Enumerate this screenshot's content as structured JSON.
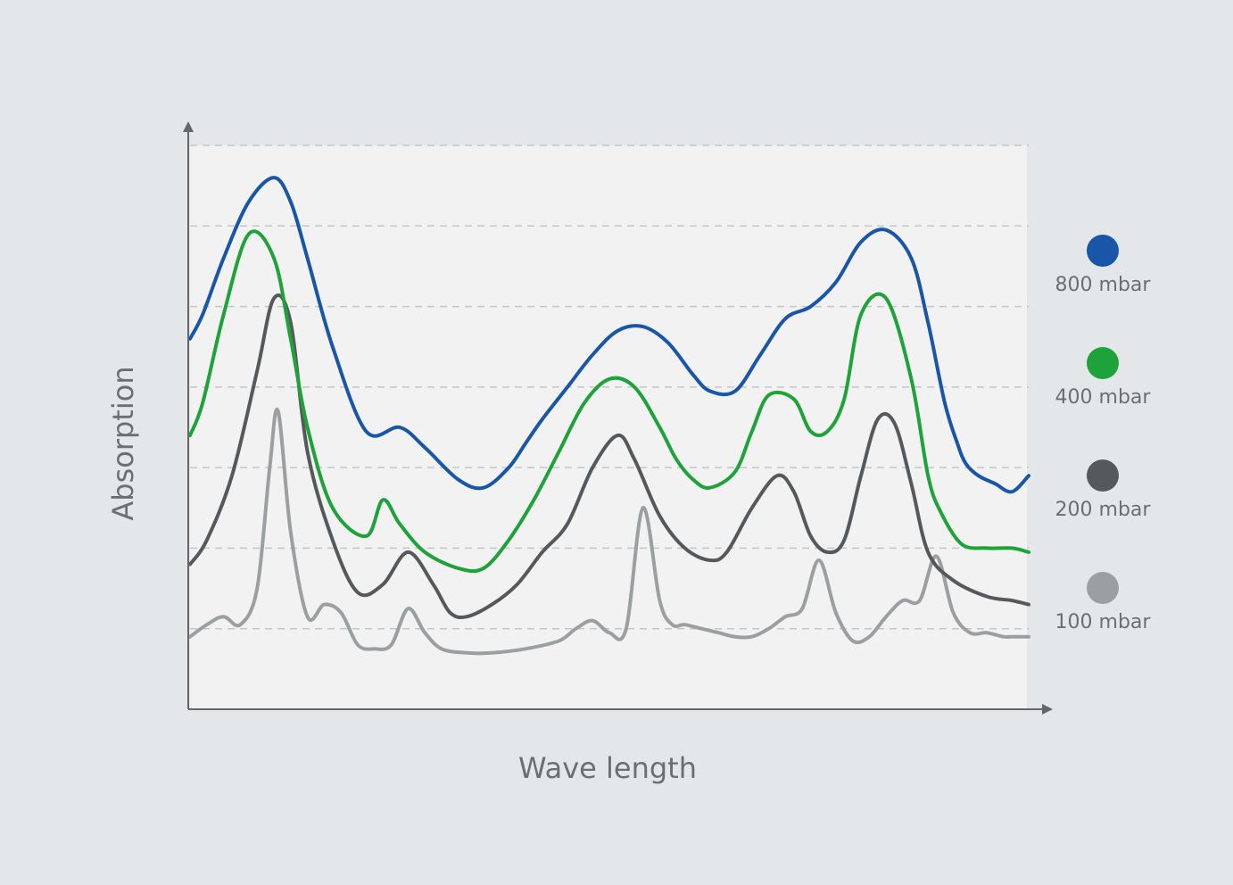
{
  "chart_data": {
    "type": "line",
    "title": "",
    "xlabel": "Wave length",
    "ylabel": "Absorption",
    "xlim": [
      0,
      100
    ],
    "ylim": [
      0,
      7
    ],
    "grid": true,
    "legend_position": "right",
    "series": [
      {
        "name": "800 mbar",
        "color": "#1a56a8",
        "x": [
          0,
          1.5,
          4,
          7,
          10,
          12,
          14,
          17,
          21,
          25,
          28,
          32,
          35,
          38,
          40,
          42,
          45,
          48,
          51,
          54,
          57,
          60,
          62,
          65,
          68,
          71,
          74,
          77,
          80,
          83,
          86,
          88,
          90,
          91.5,
          92.5,
          94,
          96,
          98,
          100
        ],
        "y": [
          4.6,
          4.9,
          5.6,
          6.3,
          6.6,
          6.3,
          5.6,
          4.5,
          3.45,
          3.5,
          3.25,
          2.85,
          2.75,
          3.0,
          3.3,
          3.6,
          4.0,
          4.4,
          4.7,
          4.75,
          4.55,
          4.15,
          3.95,
          3.95,
          4.4,
          4.85,
          5.0,
          5.3,
          5.8,
          5.95,
          5.6,
          4.8,
          3.8,
          3.3,
          3.05,
          2.9,
          2.8,
          2.7,
          2.9
        ]
      },
      {
        "name": "400 mbar",
        "color": "#1ea23a",
        "x": [
          0,
          1.5,
          4,
          7,
          10,
          12,
          14,
          17,
          21,
          23,
          25,
          28,
          32,
          35,
          38,
          41,
          44,
          47,
          50,
          53,
          56,
          58,
          60,
          62,
          65,
          67,
          69,
          72,
          74,
          76,
          78,
          80,
          83,
          86,
          88,
          89.5,
          92,
          95,
          98,
          100
        ],
        "y": [
          3.4,
          3.8,
          4.9,
          5.9,
          5.6,
          4.6,
          3.5,
          2.5,
          2.15,
          2.6,
          2.3,
          1.95,
          1.75,
          1.75,
          2.1,
          2.6,
          3.2,
          3.8,
          4.1,
          4.0,
          3.5,
          3.1,
          2.85,
          2.75,
          2.95,
          3.45,
          3.9,
          3.85,
          3.45,
          3.45,
          3.85,
          4.9,
          5.1,
          4.1,
          2.9,
          2.45,
          2.05,
          2.0,
          2.0,
          1.95
        ]
      },
      {
        "name": "200 mbar",
        "color": "#55595c",
        "x": [
          0,
          2,
          5,
          8,
          10,
          12,
          14,
          17,
          20,
          23,
          26,
          29,
          31,
          33,
          36,
          39,
          42,
          45,
          48,
          51,
          53,
          56,
          59,
          62,
          64,
          67,
          70,
          72,
          74,
          76,
          78,
          80,
          82,
          84,
          86,
          88,
          91,
          95,
          98,
          100
        ],
        "y": [
          1.8,
          2.1,
          2.9,
          4.2,
          5.1,
          4.8,
          3.2,
          2.1,
          1.45,
          1.55,
          1.95,
          1.55,
          1.2,
          1.15,
          1.3,
          1.55,
          1.95,
          2.3,
          3.0,
          3.4,
          3.1,
          2.4,
          2.0,
          1.85,
          1.95,
          2.5,
          2.9,
          2.7,
          2.15,
          1.95,
          2.1,
          2.9,
          3.6,
          3.55,
          2.8,
          1.95,
          1.6,
          1.4,
          1.35,
          1.3
        ]
      },
      {
        "name": "100 mbar",
        "color": "#9c9fa1",
        "x": [
          0,
          2,
          4,
          6,
          8,
          9.5,
          10.5,
          12,
          14,
          16,
          18,
          20,
          22,
          24,
          26,
          28,
          30,
          33,
          36,
          40,
          44,
          46,
          48,
          50,
          52,
          54,
          56,
          57.5,
          59,
          61,
          63,
          65,
          67,
          69,
          71,
          73,
          75,
          77,
          79,
          81,
          83,
          85,
          87,
          89,
          91,
          93,
          95,
          97,
          98,
          100
        ],
        "y": [
          0.9,
          1.05,
          1.15,
          1.05,
          1.5,
          3.0,
          3.7,
          2.2,
          1.15,
          1.3,
          1.2,
          0.8,
          0.75,
          0.8,
          1.25,
          0.95,
          0.75,
          0.7,
          0.7,
          0.75,
          0.85,
          1.0,
          1.1,
          0.95,
          1.0,
          2.5,
          1.35,
          1.05,
          1.05,
          1.0,
          0.95,
          0.9,
          0.9,
          1.0,
          1.15,
          1.25,
          1.85,
          1.2,
          0.85,
          0.9,
          1.15,
          1.35,
          1.35,
          1.9,
          1.2,
          0.95,
          0.95,
          0.9,
          0.9,
          0.9
        ]
      }
    ]
  }
}
